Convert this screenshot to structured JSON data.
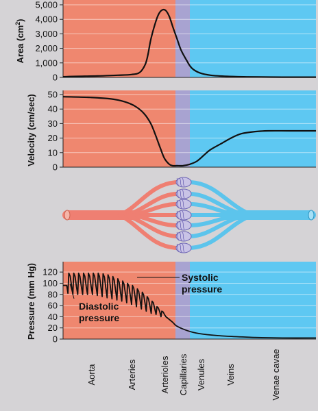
{
  "colors": {
    "background": "#d5d3d6",
    "arterial": "#ef876f",
    "capillary": "#a8a3d1",
    "venous": "#5ec8f2",
    "vessel_red": "#ef7f72",
    "vessel_blue": "#5cc4ec",
    "curve": "#111111"
  },
  "x_categories": [
    "Aorta",
    "Arteries",
    "Arterioles",
    "Capillaries",
    "Venules",
    "Veins",
    "Venae cavae"
  ],
  "chart_data": [
    {
      "type": "line",
      "name": "area",
      "ylabel": "Area (cm²)",
      "ylabel_main": "Area (cm",
      "ylabel_sup": "2",
      "ylabel_close": ")",
      "ylim": [
        0,
        5000
      ],
      "yticks": [
        "0",
        "1,000",
        "2,000",
        "3,000",
        "4,000",
        "5,000"
      ],
      "ytick_values": [
        0,
        1000,
        2000,
        3000,
        4000,
        5000
      ],
      "x": [
        0,
        20,
        50,
        80,
        100,
        112,
        120,
        124,
        128,
        135,
        140,
        145,
        150,
        155,
        160,
        166,
        172,
        180,
        185,
        190,
        200,
        215,
        240,
        270,
        320,
        369
      ],
      "y": [
        40,
        70,
        100,
        150,
        200,
        350,
        900,
        1600,
        2600,
        3800,
        4400,
        4650,
        4600,
        4200,
        3500,
        2700,
        1900,
        1200,
        800,
        550,
        300,
        150,
        70,
        40,
        20,
        20
      ]
    },
    {
      "type": "line",
      "name": "velocity",
      "ylabel": "Velocity (cm/sec)",
      "ylim": [
        0,
        50
      ],
      "yticks": [
        "0",
        "10",
        "20",
        "30",
        "40",
        "50"
      ],
      "ytick_values": [
        0,
        10,
        20,
        30,
        40,
        50
      ],
      "x": [
        0,
        40,
        70,
        90,
        105,
        118,
        128,
        135,
        142,
        148,
        155,
        160,
        166,
        175,
        185,
        195,
        205,
        215,
        230,
        245,
        260,
        280,
        300,
        330,
        369
      ],
      "y": [
        48.5,
        48,
        47,
        45,
        42,
        37,
        30,
        22,
        13,
        6,
        2,
        1,
        1,
        1,
        2,
        4,
        8,
        12,
        16,
        20,
        23,
        24.5,
        25,
        25,
        25
      ]
    },
    {
      "type": "line",
      "name": "pressure",
      "ylabel": "Pressure (mm Hg)",
      "ylim": [
        0,
        130
      ],
      "yticks": [
        "0",
        "20",
        "40",
        "60",
        "80",
        "100",
        "120"
      ],
      "ytick_values": [
        0,
        20,
        40,
        60,
        80,
        100,
        120
      ],
      "systolic_label": [
        "Systolic",
        "pressure"
      ],
      "diastolic_label": [
        "Diastolic",
        "pressure"
      ],
      "pulse_peaks": [
        96,
        118,
        118,
        118,
        118,
        118,
        118,
        118,
        117,
        115,
        112,
        108,
        104,
        100,
        96,
        90,
        84,
        76,
        68,
        58,
        50
      ],
      "pulse_troughs": [
        96,
        82,
        80,
        80,
        80,
        80,
        80,
        78,
        76,
        74,
        72,
        70,
        68,
        65,
        62,
        58,
        54,
        50,
        46,
        44,
        40
      ],
      "pulse_x_start": 0,
      "pulse_x_end": 150,
      "tail_x": [
        150,
        160,
        165,
        175,
        190,
        210,
        240,
        280,
        320,
        369
      ],
      "tail_y": [
        40,
        30,
        24,
        18,
        12,
        8,
        5,
        3,
        2,
        2
      ]
    }
  ]
}
